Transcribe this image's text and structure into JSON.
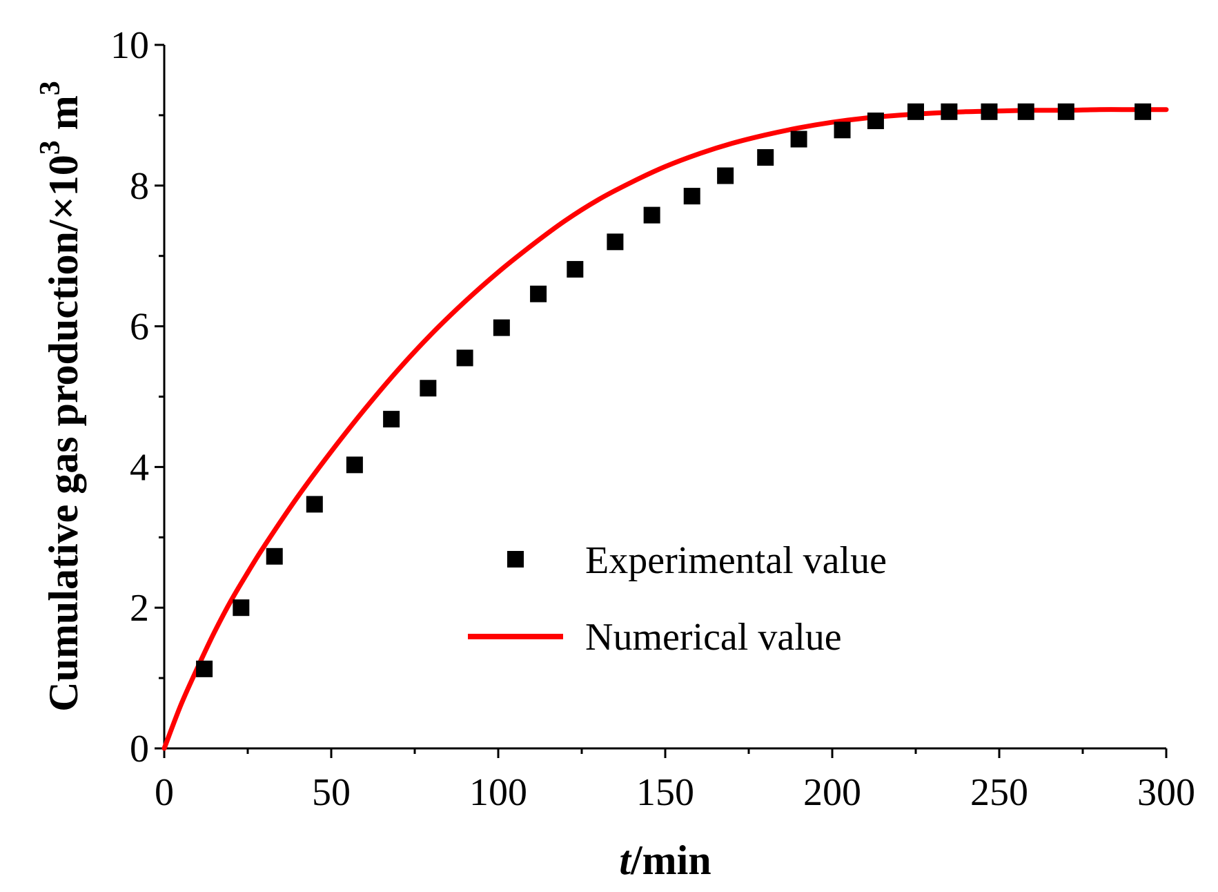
{
  "chart_data": {
    "type": "scatter",
    "xlabel_italic": "t",
    "xlabel_rest": "/min",
    "ylabel_main": "Cumulative gas production/×10",
    "ylabel_sup1": "3",
    "ylabel_unit": " m",
    "ylabel_sup2": "3",
    "xlim": [
      0,
      300
    ],
    "ylim": [
      0,
      10
    ],
    "x_ticks": [
      0,
      50,
      100,
      150,
      200,
      250,
      300
    ],
    "x_tick_labels": [
      "0",
      "50",
      "100",
      "150",
      "200",
      "250",
      "300"
    ],
    "x_minor_ticks": [
      25,
      75,
      125,
      175,
      225,
      275
    ],
    "y_ticks": [
      0,
      2,
      4,
      6,
      8,
      10
    ],
    "y_tick_labels": [
      "0",
      "2",
      "4",
      "6",
      "8",
      "10"
    ],
    "y_minor_ticks": [
      1,
      3,
      5,
      7,
      9
    ],
    "legend_position": "center-right",
    "series": [
      {
        "name": "Experimental value",
        "kind": "scatter",
        "color": "#000000",
        "x": [
          12,
          23,
          33,
          45,
          57,
          68,
          79,
          90,
          101,
          112,
          123,
          135,
          146,
          158,
          168,
          180,
          190,
          203,
          213,
          225,
          235,
          247,
          258,
          270,
          293
        ],
        "y": [
          1.13,
          2.0,
          2.73,
          3.47,
          4.03,
          4.68,
          5.12,
          5.55,
          5.98,
          6.46,
          6.81,
          7.2,
          7.58,
          7.85,
          8.14,
          8.4,
          8.66,
          8.79,
          8.92,
          9.05,
          9.05,
          9.05,
          9.05,
          9.05,
          9.05
        ]
      },
      {
        "name": "Numerical value",
        "kind": "line",
        "color": "#ff0000",
        "x": [
          0,
          5,
          10,
          15,
          20,
          25,
          30,
          40,
          50,
          60,
          70,
          80,
          90,
          100,
          110,
          120,
          130,
          140,
          150,
          160,
          170,
          180,
          190,
          200,
          210,
          220,
          230,
          240,
          250,
          260,
          270,
          280,
          290,
          300
        ],
        "y": [
          0,
          0.62,
          1.15,
          1.65,
          2.1,
          2.5,
          2.88,
          3.58,
          4.22,
          4.82,
          5.38,
          5.89,
          6.35,
          6.77,
          7.15,
          7.5,
          7.8,
          8.05,
          8.27,
          8.45,
          8.6,
          8.72,
          8.82,
          8.9,
          8.96,
          9.0,
          9.03,
          9.05,
          9.06,
          9.07,
          9.07,
          9.08,
          9.08,
          9.08
        ]
      }
    ]
  }
}
